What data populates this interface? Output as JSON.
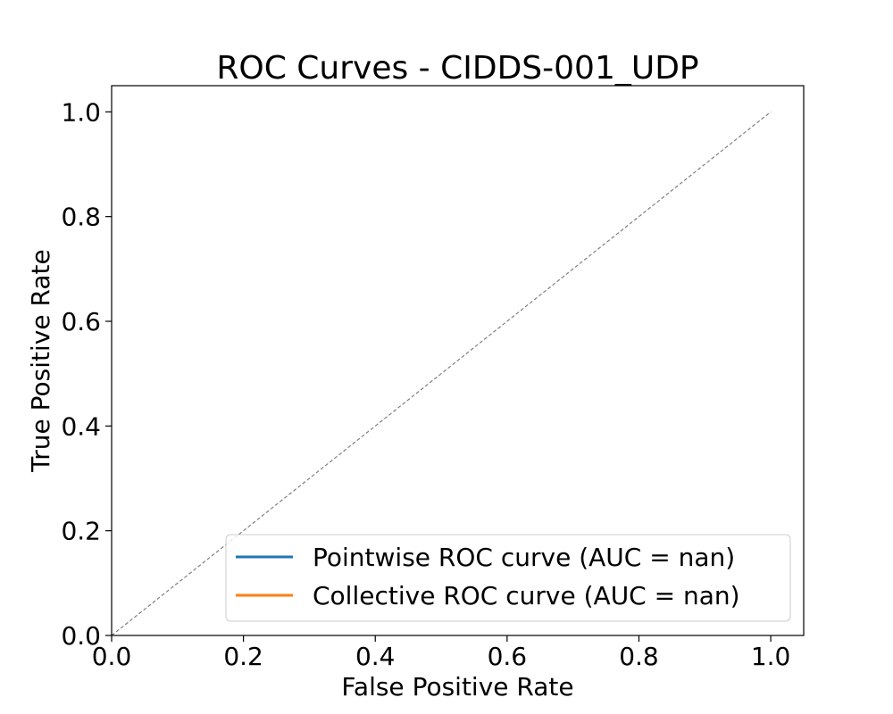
{
  "chart_data": {
    "type": "line",
    "title": "ROC Curves - CIDDS-001_UDP",
    "xlabel": "False Positive Rate",
    "ylabel": "True Positive Rate",
    "xlim": [
      0.0,
      1.05
    ],
    "ylim": [
      0.0,
      1.05
    ],
    "x_ticks": [
      0.0,
      0.2,
      0.4,
      0.6,
      0.8,
      1.0
    ],
    "x_tick_labels": [
      "0.0",
      "0.2",
      "0.4",
      "0.6",
      "0.8",
      "1.0"
    ],
    "y_ticks": [
      0.0,
      0.2,
      0.4,
      0.6,
      0.8,
      1.0
    ],
    "y_tick_labels": [
      "0.0",
      "0.2",
      "0.4",
      "0.6",
      "0.8",
      "1.0"
    ],
    "grid": false,
    "legend_position": "lower-right",
    "series": [
      {
        "name": "Pointwise ROC curve (AUC = nan)",
        "color": "#1f77b4",
        "x": [],
        "y": []
      },
      {
        "name": "Collective ROC curve (AUC = nan)",
        "color": "#ff7f0e",
        "x": [],
        "y": []
      }
    ],
    "reference_line": {
      "x": [
        0.0,
        1.0
      ],
      "y": [
        0.0,
        1.0
      ],
      "color": "#808080",
      "style": "dashed"
    }
  }
}
